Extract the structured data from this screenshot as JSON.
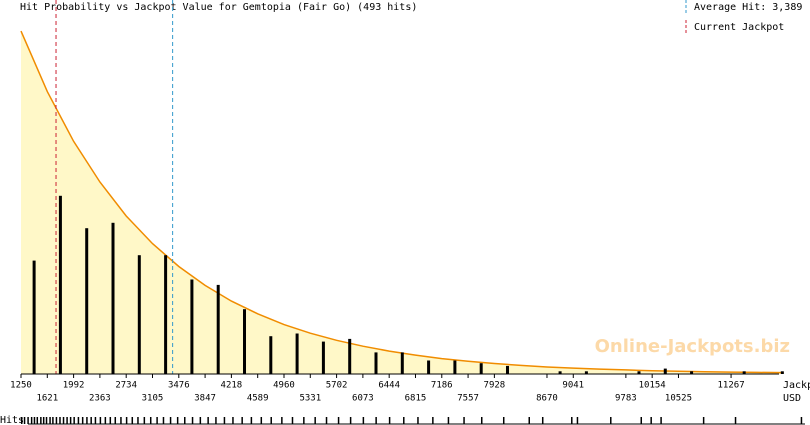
{
  "chart_data": {
    "type": "bar",
    "title": "Hit Probability vs Jackpot Value for Gemtopia (Fair Go) (493 hits)",
    "average_hit": 3389,
    "average_hit_label": "Average Hit: 3,389",
    "average_color": "#3399cc",
    "current_jackpot": 1744,
    "current_jackpot_label": "Current Jackpot",
    "current_color": "#cc2233",
    "watermark": "Online-Jackpots.biz",
    "x_label": [
      "Jackpot,",
      "USD"
    ],
    "hits_label": "Hits",
    "color": "#000000",
    "x": [
      1435,
      1806,
      2177,
      2548,
      2919,
      3290,
      3661,
      4032,
      4403,
      4774,
      5145,
      5516,
      5887,
      6258,
      6629,
      7000,
      7371,
      7742,
      8113,
      8855,
      9226,
      9968,
      10339,
      10710,
      11452,
      11990
    ],
    "values": [
      42,
      66,
      54,
      56,
      44,
      44,
      35,
      33,
      24,
      14,
      15,
      12,
      13,
      8,
      8,
      5,
      5,
      4,
      3,
      1,
      1,
      1,
      2,
      1,
      1,
      1
    ],
    "fit": {
      "color": "#f08c00",
      "fill": "#fff8c8",
      "x": [
        1250,
        1621,
        1992,
        2363,
        2734,
        3105,
        3476,
        3847,
        4218,
        4589,
        4960,
        5331,
        5702,
        6073,
        6444,
        6815,
        7186,
        7557,
        7928,
        8299,
        8670,
        9041,
        9412,
        9783,
        10154,
        10525,
        10896,
        11267,
        11638,
        12009
      ],
      "values": [
        127,
        104.6,
        86.2,
        71.1,
        58.5,
        48.3,
        39.8,
        32.8,
        27.0,
        22.3,
        18.3,
        15.1,
        12.5,
        10.3,
        8.5,
        7.0,
        5.7,
        4.7,
        3.9,
        3.2,
        2.6,
        2.2,
        1.8,
        1.5,
        1.2,
        1.0,
        0.8,
        0.7,
        0.6,
        0.5
      ]
    },
    "hits": [
      1260,
      1300,
      1350,
      1400,
      1440,
      1480,
      1530,
      1570,
      1610,
      1660,
      1700,
      1750,
      1800,
      1850,
      1900,
      1950,
      2000,
      2060,
      2120,
      2180,
      2240,
      2300,
      2370,
      2440,
      2510,
      2580,
      2660,
      2740,
      2820,
      2900,
      2990,
      3080,
      3170,
      3260,
      3360,
      3460,
      3560,
      3670,
      3780,
      3890,
      4000,
      4120,
      4240,
      4370,
      4500,
      4640,
      4780,
      4930,
      5080,
      5240,
      5400,
      5560,
      5730,
      5900,
      6080,
      6260,
      6450,
      6650,
      6850,
      7060,
      7280,
      7500,
      7750,
      8060,
      8420,
      8610,
      9020,
      9100,
      9570,
      10000,
      10140,
      10280,
      10880,
      11330,
      12260
    ],
    "xlim": [
      1250,
      12310
    ],
    "ylim": [
      0,
      130
    ],
    "xticks": [
      1250,
      1621,
      1992,
      2363,
      2734,
      3105,
      3476,
      3847,
      4218,
      4589,
      4960,
      5331,
      5702,
      6073,
      6444,
      6815,
      7186,
      7557,
      7928,
      8670,
      9041,
      9783,
      10154,
      10525,
      11267
    ]
  }
}
